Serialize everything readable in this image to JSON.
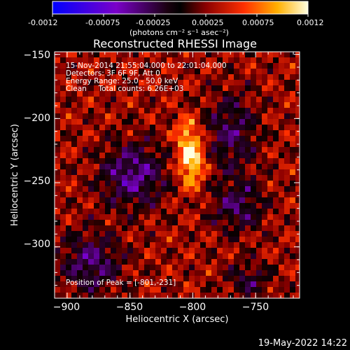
{
  "colorbar": {
    "ticks": [
      "-0.0012",
      "-0.00075",
      "-0.00025",
      "0.00025",
      "0.00075",
      "0.0012"
    ],
    "unit_label": "(photons cm⁻² s⁻¹ asec⁻²)"
  },
  "chart_data": {
    "type": "heatmap",
    "title": "Reconstructed RHESSI Image",
    "xlabel": "Heliocentric X (arcsec)",
    "ylabel": "Heliocentric Y (arcsec)",
    "xlim": [
      -910,
      -715
    ],
    "ylim": [
      -340,
      -148
    ],
    "x_ticks": [
      -900,
      -850,
      -800,
      -750
    ],
    "x_tick_labels": [
      "−900",
      "−850",
      "−800",
      "−750"
    ],
    "y_ticks": [
      -150,
      -200,
      -250,
      -300
    ],
    "y_tick_labels": [
      "−150",
      "−200",
      "−250",
      "−300"
    ],
    "color_range": [
      -0.0012,
      0.0012
    ],
    "peak": [
      -801,
      -231
    ],
    "annotations": [
      "15-Nov-2014 21:55:04.000 to 22:01:04.000",
      "Detectors: 3F 6F 9F, Att 0",
      "Energy Range: 25.0 - 50.0 keV",
      "Clean     Total counts: 6.26E+03"
    ],
    "peak_label": "Position of Peak = [-801,-231]"
  },
  "footer": {
    "timestamp": "19-May-2022 14:22"
  },
  "colors": {
    "background": "#000000",
    "axes": "#ffffff"
  }
}
